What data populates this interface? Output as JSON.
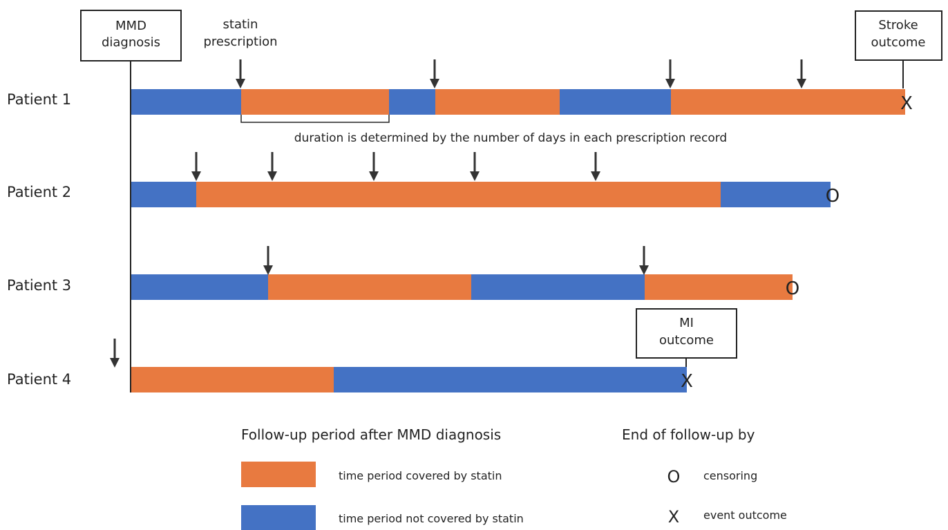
{
  "colors": {
    "covered": "#E87A40",
    "not_covered": "#4472C4",
    "line": "#222222"
  },
  "boxes": {
    "mmd": [
      "MMD",
      "diagnosis"
    ],
    "stroke": [
      "Stroke",
      "outcome"
    ],
    "mi": [
      "MI",
      "outcome"
    ]
  },
  "statin_label": [
    "statin",
    "prescription"
  ],
  "duration_note": "duration is determined by the number of days in each prescription record",
  "patients": [
    {
      "label": "Patient 1",
      "end_marker": "X",
      "segments": [
        {
          "status": "not_covered"
        },
        {
          "status": "covered"
        },
        {
          "status": "not_covered"
        },
        {
          "status": "covered"
        },
        {
          "status": "not_covered"
        },
        {
          "status": "covered"
        }
      ]
    },
    {
      "label": "Patient 2",
      "end_marker": "O",
      "segments": [
        {
          "status": "not_covered"
        },
        {
          "status": "covered"
        },
        {
          "status": "not_covered"
        }
      ]
    },
    {
      "label": "Patient 3",
      "end_marker": "O",
      "segments": [
        {
          "status": "not_covered"
        },
        {
          "status": "covered"
        },
        {
          "status": "not_covered"
        },
        {
          "status": "covered"
        }
      ]
    },
    {
      "label": "Patient 4",
      "end_marker": "X",
      "segments": [
        {
          "status": "covered"
        },
        {
          "status": "not_covered"
        }
      ]
    }
  ],
  "legend": {
    "follow_up_title": "Follow-up period after MMD diagnosis",
    "covered_label": "time period covered by statin",
    "not_covered_label": "time period not covered by statin",
    "end_title": "End of follow-up by",
    "censor_symbol": "O",
    "censor_label": "censoring",
    "event_symbol": "X",
    "event_label": "event outcome"
  }
}
